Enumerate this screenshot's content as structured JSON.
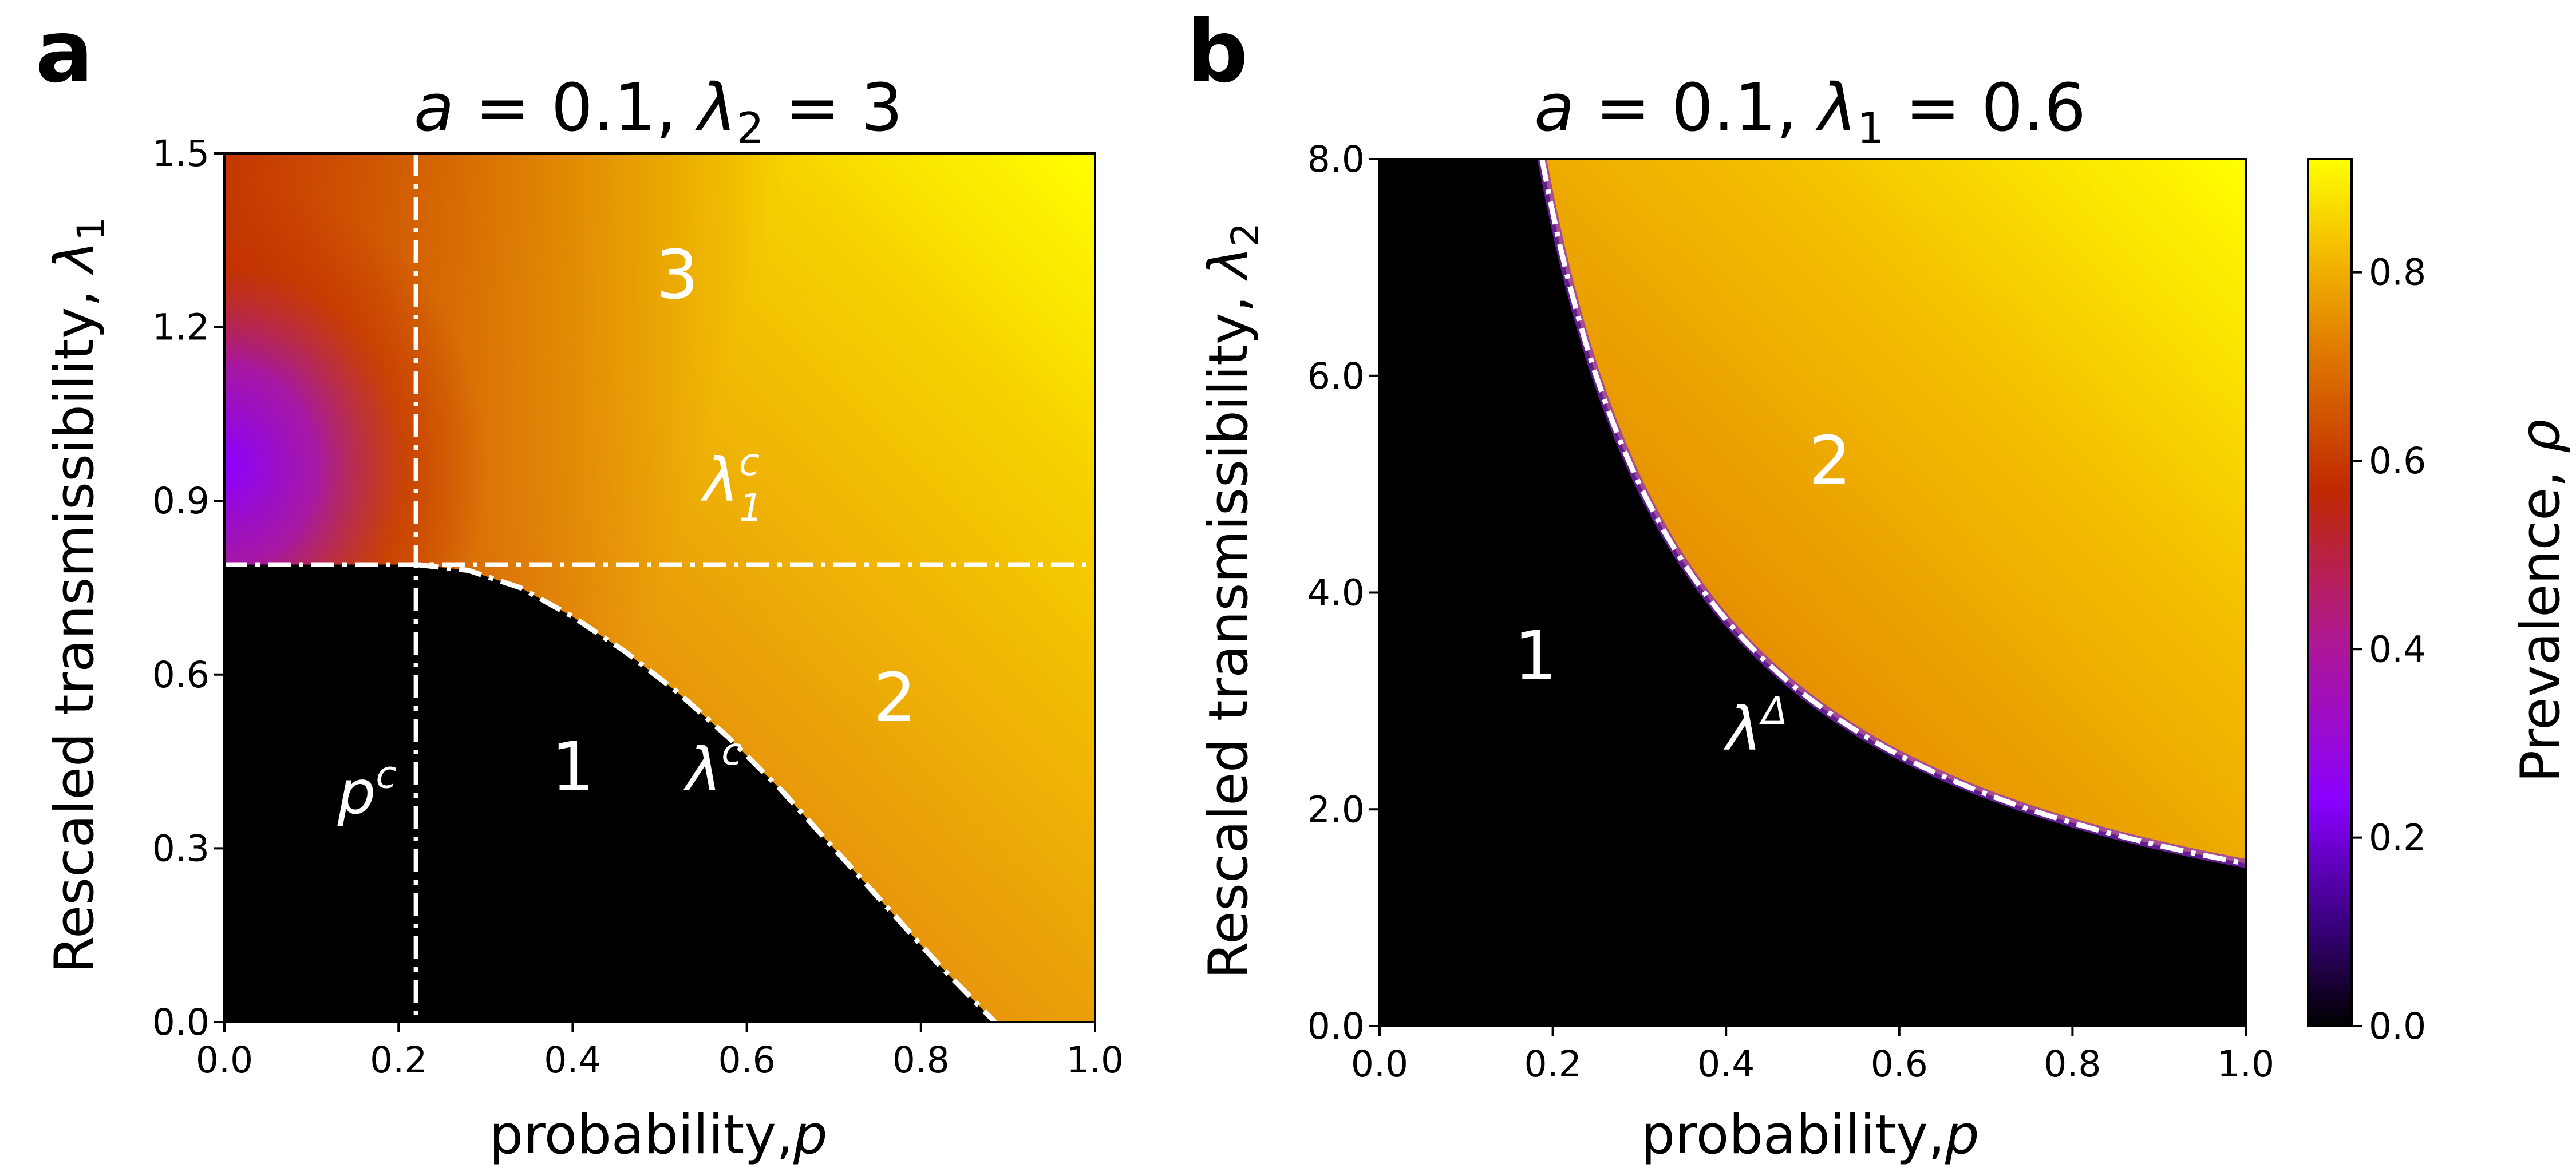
{
  "chart_data": [
    {
      "type": "heatmap",
      "panel_label": "a",
      "title": "a = 0.1, λ₂ = 3",
      "title_parts": {
        "lhs1": "a",
        "eq1": " = 0.1, ",
        "lhs2": "λ",
        "sub2": "2",
        "eq2": " = 3"
      },
      "xlabel": "probability,",
      "xlabel_var": "p",
      "ylabel": "Rescaled transmissibility, ",
      "ylabel_var": "λ",
      "ylabel_sub": "1",
      "xlim": [
        0.0,
        1.0
      ],
      "ylim": [
        0.0,
        1.5
      ],
      "xticks": [
        "0.0",
        "0.2",
        "0.4",
        "0.6",
        "0.8",
        "1.0"
      ],
      "xtick_values": [
        0.0,
        0.2,
        0.4,
        0.6,
        0.8,
        1.0
      ],
      "yticks": [
        "0.0",
        "0.3",
        "0.6",
        "0.9",
        "1.2",
        "1.5"
      ],
      "ytick_values": [
        0.0,
        0.3,
        0.6,
        0.9,
        1.2,
        1.5
      ],
      "critical_p": 0.22,
      "critical_lambda1": 0.79,
      "boundary_curve": {
        "name": "λ^c",
        "p": [
          0.22,
          0.28,
          0.34,
          0.4,
          0.46,
          0.52,
          0.58,
          0.64,
          0.7,
          0.76,
          0.82,
          0.885
        ],
        "lambda1": [
          0.79,
          0.78,
          0.75,
          0.7,
          0.64,
          0.57,
          0.49,
          0.4,
          0.3,
          0.2,
          0.1,
          0.0
        ]
      },
      "region_labels": [
        {
          "text": "1",
          "p": 0.4,
          "lambda1": 0.4
        },
        {
          "text": "2",
          "p": 0.77,
          "lambda1": 0.52
        },
        {
          "text": "3",
          "p": 0.52,
          "lambda1": 1.25
        }
      ],
      "annotations": [
        {
          "text": "p",
          "sup": "c",
          "p": 0.13,
          "lambda1": 0.36
        },
        {
          "text": "λ",
          "sup": "c",
          "p": 0.53,
          "lambda1": 0.4
        },
        {
          "text": "λ",
          "sup": "c",
          "sub": "1",
          "p": 0.55,
          "lambda1": 0.9
        }
      ]
    },
    {
      "type": "heatmap",
      "panel_label": "b",
      "title": "a = 0.1, λ₁ = 0.6",
      "title_parts": {
        "lhs1": "a",
        "eq1": " = 0.1, ",
        "lhs2": "λ",
        "sub2": "1",
        "eq2": " = 0.6"
      },
      "xlabel": "probability,",
      "xlabel_var": "p",
      "ylabel": "Rescaled transmissibility, ",
      "ylabel_var": "λ",
      "ylabel_sub": "2",
      "xlim": [
        0.0,
        1.0
      ],
      "ylim": [
        0.0,
        8.0
      ],
      "xticks": [
        "0.0",
        "0.2",
        "0.4",
        "0.6",
        "0.8",
        "1.0"
      ],
      "xtick_values": [
        0.0,
        0.2,
        0.4,
        0.6,
        0.8,
        1.0
      ],
      "yticks": [
        "0.0",
        "2.0",
        "4.0",
        "6.0",
        "8.0"
      ],
      "ytick_values": [
        0.0,
        2.0,
        4.0,
        6.0,
        8.0
      ],
      "boundary_curve": {
        "name": "λ^Δ",
        "formula": "lambda2 = 1.5 / p",
        "p_range": [
          0.1875,
          1.0
        ]
      },
      "region_labels": [
        {
          "text": "1",
          "p": 0.18,
          "lambda2": 3.2
        },
        {
          "text": "2",
          "p": 0.52,
          "lambda2": 5.0
        }
      ],
      "annotations": [
        {
          "text": "λ",
          "sup": "Δ",
          "p": 0.4,
          "lambda2": 2.55
        }
      ]
    }
  ],
  "colorbar": {
    "label": "Prevalence, ",
    "label_var": "ρ",
    "range": [
      0.0,
      0.92
    ],
    "ticks": [
      "0.0",
      "0.2",
      "0.4",
      "0.6",
      "0.8"
    ],
    "tick_values": [
      0.0,
      0.2,
      0.4,
      0.6,
      0.8
    ],
    "colormap": "gnuplot",
    "colors": {
      "c0": "#000000",
      "c1": "#8a00ff",
      "c2": "#c02a00",
      "c3": "#e8a000",
      "c4": "#ffff00"
    }
  }
}
